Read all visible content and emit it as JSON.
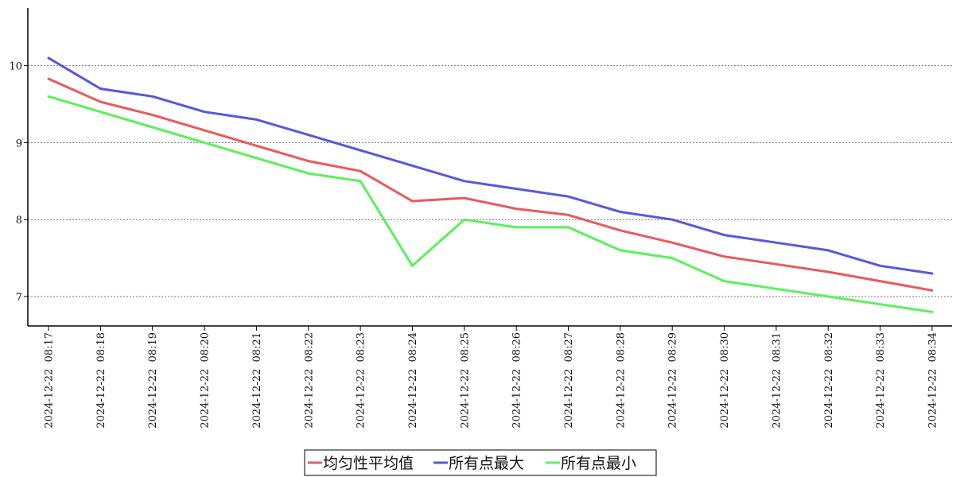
{
  "chart_data": {
    "type": "line",
    "title": "",
    "xlabel": "",
    "ylabel": "",
    "categories": [
      "2024-12-22  08:17",
      "2024-12-22  08:18",
      "2024-12-22  08:19",
      "2024-12-22  08:20",
      "2024-12-22  08:21",
      "2024-12-22  08:22",
      "2024-12-22  08:23",
      "2024-12-22  08:24",
      "2024-12-22  08:25",
      "2024-12-22  08:26",
      "2024-12-22  08:27",
      "2024-12-22  08:28",
      "2024-12-22  08:29",
      "2024-12-22  08:30",
      "2024-12-22  08:31",
      "2024-12-22  08:32",
      "2024-12-22  08:33",
      "2024-12-22  08:34"
    ],
    "yticks": [
      "7",
      "8",
      "9",
      "10"
    ],
    "ylim": [
      6.65,
      10.75
    ],
    "grid": "horizontal dotted",
    "legend_position": "bottom-center",
    "series": [
      {
        "name": "均匀性平均值",
        "color": "#e85a5a",
        "values": [
          9.83,
          9.53,
          9.36,
          9.16,
          8.96,
          8.76,
          8.63,
          8.24,
          8.28,
          8.14,
          8.06,
          7.86,
          7.7,
          7.52,
          7.42,
          7.32,
          7.2,
          7.08
        ]
      },
      {
        "name": "所有点最大",
        "color": "#5757e0",
        "values": [
          10.1,
          9.7,
          9.6,
          9.4,
          9.3,
          9.1,
          8.9,
          8.7,
          8.5,
          8.4,
          8.3,
          8.1,
          8.0,
          7.8,
          7.7,
          7.6,
          7.4,
          7.3
        ]
      },
      {
        "name": "所有点最小",
        "color": "#5cf05c",
        "values": [
          9.6,
          9.4,
          9.2,
          9.0,
          8.8,
          8.6,
          8.5,
          7.4,
          8.0,
          7.9,
          7.9,
          7.6,
          7.5,
          7.2,
          7.1,
          7.0,
          6.9,
          6.8
        ]
      }
    ]
  }
}
